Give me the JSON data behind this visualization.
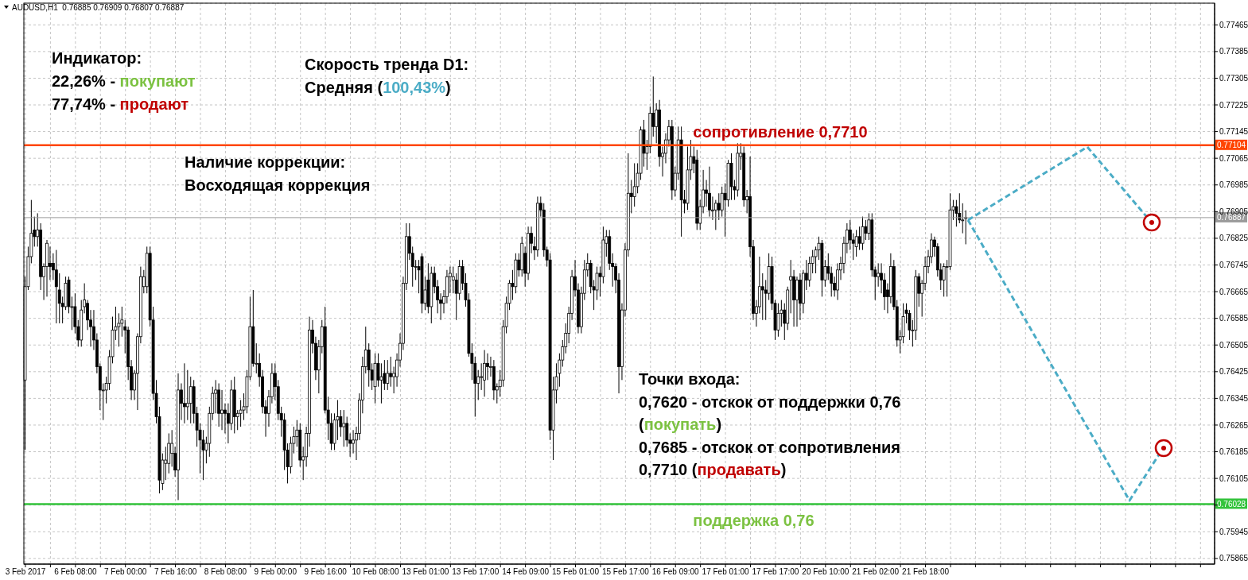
{
  "chart_data": {
    "type": "candlestick",
    "title": "AUDUSD,H1  0.76885 0.76909 0.76807 0.76887",
    "categories": [
      "3 Feb 2017",
      null,
      null,
      null,
      null,
      null,
      null,
      null,
      null,
      null,
      null,
      null,
      null,
      null,
      null,
      null,
      "6 Feb 08:00",
      null,
      null,
      null,
      null,
      null,
      null,
      null,
      null,
      null,
      null,
      null,
      null,
      null,
      null,
      null,
      "7 Feb 00:00",
      null,
      null,
      null,
      null,
      null,
      null,
      null,
      null,
      null,
      null,
      null,
      null,
      null,
      null,
      null,
      "7 Feb 16:00",
      null,
      null,
      null,
      null,
      null,
      null,
      null,
      null,
      null,
      null,
      null,
      null,
      null,
      null,
      null,
      "8 Feb 08:00",
      null,
      null,
      null,
      null,
      null,
      null,
      null,
      null,
      null,
      null,
      null,
      null,
      null,
      null,
      null,
      "9 Feb 00:00",
      null,
      null,
      null,
      null,
      null,
      null,
      null,
      null,
      null,
      null,
      null,
      null,
      null,
      null,
      null,
      "9 Feb 16:00",
      null,
      null,
      null,
      null,
      null,
      null,
      null,
      null,
      null,
      null,
      null,
      null,
      null,
      null,
      null,
      "10 Feb 08:00",
      null,
      null,
      null,
      null,
      null,
      null,
      null,
      null,
      null,
      null,
      null,
      null,
      null,
      null,
      null,
      "13 Feb 01:00",
      null,
      null,
      null,
      null,
      null,
      null,
      null,
      null,
      null,
      null,
      null,
      null,
      null,
      null,
      null,
      "13 Feb 17:00",
      null,
      null,
      null,
      null,
      null,
      null,
      null,
      null,
      null,
      null,
      null,
      null,
      null,
      null,
      null,
      "14 Feb 09:00",
      null,
      null,
      null,
      null,
      null,
      null,
      null,
      null,
      null,
      null,
      null,
      null,
      null,
      null,
      null,
      "15 Feb 01:00",
      null,
      null,
      null,
      null,
      null,
      null,
      null,
      null,
      null,
      null,
      null,
      null,
      null,
      null,
      null,
      "15 Feb 17:00",
      null,
      null,
      null,
      null,
      null,
      null,
      null,
      null,
      null,
      null,
      null,
      null,
      null,
      null,
      null,
      "16 Feb 09:00",
      null,
      null,
      null,
      null,
      null,
      null,
      null,
      null,
      null,
      null,
      null,
      null,
      null,
      null,
      null,
      "17 Feb 01:00",
      null,
      null,
      null,
      null,
      null,
      null,
      null,
      null,
      null,
      null,
      null,
      null,
      null,
      null,
      null,
      "17 Feb 17:00",
      null,
      null,
      null,
      null,
      null,
      null,
      null,
      null,
      null,
      null,
      null,
      null,
      null,
      null,
      null,
      "20 Feb 10:00",
      null,
      null,
      null,
      null,
      null,
      null,
      null,
      null,
      null,
      null,
      null,
      null,
      null,
      null,
      null,
      "21 Feb 02:00",
      null,
      null,
      null,
      null,
      null,
      null,
      null,
      null,
      null,
      null,
      null,
      null,
      null,
      null,
      null,
      "21 Feb 18:00",
      null,
      null,
      null,
      null,
      null,
      null,
      null,
      null,
      null,
      null,
      null,
      null,
      null,
      null,
      null,
      null,
      null,
      null,
      null,
      null,
      null,
      null,
      null,
      null,
      null,
      null,
      null,
      null,
      null,
      null,
      null,
      null,
      null,
      null,
      null,
      null,
      null,
      null,
      null,
      null,
      null,
      null,
      null,
      null,
      null,
      null,
      null,
      null,
      null,
      null,
      null,
      null,
      null,
      null,
      null,
      null,
      null,
      null,
      null,
      null,
      null,
      null,
      null,
      null,
      null,
      null,
      null,
      null,
      null,
      null,
      null,
      null,
      null,
      null,
      null,
      null,
      null,
      null,
      null,
      null,
      null,
      null,
      null,
      null,
      null,
      null,
      null,
      null,
      null,
      null,
      null,
      null
    ],
    "ohlc": [
      [
        0.764,
        0.7671,
        0.7619,
        0.7668
      ],
      [
        0.7668,
        0.768,
        0.7667,
        0.7677
      ],
      [
        0.7677,
        0.7694,
        0.7675,
        0.7684
      ],
      [
        0.7685,
        0.7689,
        0.768,
        0.7683
      ],
      [
        0.7683,
        0.769,
        0.768,
        0.7685
      ],
      [
        0.7685,
        0.7687,
        0.7667,
        0.7671
      ],
      [
        0.7671,
        0.7675,
        0.7664,
        0.7674
      ],
      [
        0.7674,
        0.7682,
        0.7665,
        0.7681
      ],
      [
        0.7675,
        0.768,
        0.767,
        0.7674
      ],
      [
        0.7675,
        0.7678,
        0.767,
        0.7673
      ],
      [
        0.7673,
        0.7679,
        0.7657,
        0.7668
      ],
      [
        0.7667,
        0.7672,
        0.7657,
        0.7663
      ],
      [
        0.7663,
        0.7665,
        0.7657,
        0.7662
      ],
      [
        0.7662,
        0.7671,
        0.7661,
        0.7669
      ],
      [
        0.767,
        0.7671,
        0.766,
        0.7662
      ],
      [
        0.7662,
        0.7665,
        0.7655,
        0.7662
      ],
      [
        0.7662,
        0.7666,
        0.7654,
        0.7656
      ],
      [
        0.7656,
        0.7658,
        0.765,
        0.7652
      ],
      [
        0.7652,
        0.7664,
        0.765,
        0.7661
      ],
      [
        0.7662,
        0.7669,
        0.766,
        0.7664
      ],
      [
        0.7663,
        0.7664,
        0.7655,
        0.7658
      ],
      [
        0.7658,
        0.7661,
        0.765,
        0.7656
      ],
      [
        0.7656,
        0.7661,
        0.7649,
        0.7652
      ],
      [
        0.7652,
        0.7654,
        0.7642,
        0.7644
      ],
      [
        0.7644,
        0.7645,
        0.7631,
        0.7637
      ],
      [
        0.7637,
        0.7639,
        0.7628,
        0.7637
      ],
      [
        0.7637,
        0.7641,
        0.7633,
        0.7639
      ],
      [
        0.7639,
        0.7649,
        0.7637,
        0.7647
      ],
      [
        0.7647,
        0.7659,
        0.7645,
        0.7655
      ],
      [
        0.7655,
        0.7662,
        0.7652,
        0.7656
      ],
      [
        0.7656,
        0.766,
        0.765,
        0.7657
      ],
      [
        0.7657,
        0.7662,
        0.7653,
        0.7658
      ],
      [
        0.7656,
        0.7658,
        0.7648,
        0.7655
      ],
      [
        0.7655,
        0.7656,
        0.764,
        0.7644
      ],
      [
        0.7644,
        0.7646,
        0.7634,
        0.7637
      ],
      [
        0.7637,
        0.7643,
        0.7634,
        0.7642
      ],
      [
        0.7642,
        0.7654,
        0.7631,
        0.7653
      ],
      [
        0.7653,
        0.7674,
        0.7651,
        0.7671
      ],
      [
        0.7668,
        0.7673,
        0.7666,
        0.7671
      ],
      [
        0.7668,
        0.768,
        0.7666,
        0.7678
      ],
      [
        0.7678,
        0.768,
        0.7656,
        0.7658
      ],
      [
        0.7658,
        0.7662,
        0.7634,
        0.7636
      ],
      [
        0.7636,
        0.764,
        0.7627,
        0.7629
      ],
      [
        0.7629,
        0.7632,
        0.7606,
        0.761
      ],
      [
        0.7609,
        0.7618,
        0.7607,
        0.7616
      ],
      [
        0.7615,
        0.762,
        0.761,
        0.7616
      ],
      [
        0.7615,
        0.7624,
        0.7612,
        0.7621
      ],
      [
        0.7618,
        0.7625,
        0.7614,
        0.7621
      ],
      [
        0.7618,
        0.762,
        0.7611,
        0.7613
      ],
      [
        0.7613,
        0.7642,
        0.7604,
        0.7637
      ],
      [
        0.7637,
        0.7639,
        0.7628,
        0.7633
      ],
      [
        0.7633,
        0.7645,
        0.7627,
        0.7632
      ],
      [
        0.7632,
        0.7643,
        0.7628,
        0.7633
      ],
      [
        0.7633,
        0.7641,
        0.7627,
        0.7638
      ],
      [
        0.7638,
        0.764,
        0.7627,
        0.763
      ],
      [
        0.763,
        0.7632,
        0.762,
        0.7625
      ],
      [
        0.7625,
        0.7627,
        0.7612,
        0.7622
      ],
      [
        0.7622,
        0.7625,
        0.761,
        0.7619
      ],
      [
        0.7619,
        0.7623,
        0.7615,
        0.7621
      ],
      [
        0.7621,
        0.7632,
        0.7617,
        0.763
      ],
      [
        0.763,
        0.7638,
        0.7628,
        0.7636
      ],
      [
        0.7636,
        0.764,
        0.763,
        0.7637
      ],
      [
        0.7637,
        0.7639,
        0.7626,
        0.763
      ],
      [
        0.763,
        0.7637,
        0.7625,
        0.7631
      ],
      [
        0.7631,
        0.7633,
        0.7624,
        0.763
      ],
      [
        0.763,
        0.7633,
        0.7621,
        0.7627
      ],
      [
        0.7627,
        0.764,
        0.7625,
        0.7637
      ],
      [
        0.7637,
        0.7641,
        0.7624,
        0.7629
      ],
      [
        0.7629,
        0.7631,
        0.7625,
        0.763
      ],
      [
        0.763,
        0.7634,
        0.7626,
        0.7631
      ],
      [
        0.7631,
        0.7636,
        0.7628,
        0.7632
      ],
      [
        0.7632,
        0.7643,
        0.763,
        0.7641
      ],
      [
        0.7641,
        0.7665,
        0.764,
        0.7656
      ],
      [
        0.7656,
        0.7667,
        0.7644,
        0.7645
      ],
      [
        0.7645,
        0.7651,
        0.7642,
        0.7645
      ],
      [
        0.7645,
        0.7648,
        0.7638,
        0.7641
      ],
      [
        0.7641,
        0.7643,
        0.763,
        0.7632
      ],
      [
        0.7632,
        0.7634,
        0.7623,
        0.763
      ],
      [
        0.763,
        0.7637,
        0.7626,
        0.7635
      ],
      [
        0.7635,
        0.7645,
        0.7633,
        0.7642
      ],
      [
        0.7642,
        0.7645,
        0.7634,
        0.7638
      ],
      [
        0.7638,
        0.764,
        0.7628,
        0.763
      ],
      [
        0.763,
        0.7632,
        0.7623,
        0.7628
      ],
      [
        0.7628,
        0.763,
        0.7613,
        0.7619
      ],
      [
        0.7619,
        0.7621,
        0.7609,
        0.7614
      ],
      [
        0.7614,
        0.7623,
        0.7612,
        0.7621
      ],
      [
        0.7621,
        0.7626,
        0.7618,
        0.7623
      ],
      [
        0.7623,
        0.7628,
        0.762,
        0.7625
      ],
      [
        0.7625,
        0.7627,
        0.7614,
        0.7616
      ],
      [
        0.7616,
        0.762,
        0.761,
        0.7617
      ],
      [
        0.7617,
        0.7626,
        0.7614,
        0.7624
      ],
      [
        0.7624,
        0.7659,
        0.762,
        0.7655
      ],
      [
        0.7655,
        0.7658,
        0.7648,
        0.7651
      ],
      [
        0.7651,
        0.7653,
        0.764,
        0.7643
      ],
      [
        0.7643,
        0.7652,
        0.7636,
        0.765
      ],
      [
        0.765,
        0.7658,
        0.7648,
        0.7656
      ],
      [
        0.7656,
        0.7662,
        0.763,
        0.7631
      ],
      [
        0.7631,
        0.7635,
        0.7622,
        0.7627
      ],
      [
        0.7627,
        0.763,
        0.7619,
        0.7621
      ],
      [
        0.7621,
        0.763,
        0.7619,
        0.7628
      ],
      [
        0.7628,
        0.7634,
        0.7622,
        0.7629
      ],
      [
        0.7629,
        0.7631,
        0.7623,
        0.7626
      ],
      [
        0.7626,
        0.7631,
        0.762,
        0.7627
      ],
      [
        0.7627,
        0.7629,
        0.762,
        0.7622
      ],
      [
        0.7622,
        0.7624,
        0.7617,
        0.7621
      ],
      [
        0.7621,
        0.7625,
        0.7618,
        0.7622
      ],
      [
        0.7622,
        0.7626,
        0.7616,
        0.7624
      ],
      [
        0.7624,
        0.7636,
        0.7622,
        0.7634
      ],
      [
        0.7634,
        0.7647,
        0.763,
        0.7644
      ],
      [
        0.7644,
        0.7656,
        0.7642,
        0.7649
      ],
      [
        0.7649,
        0.7651,
        0.7638,
        0.7643
      ],
      [
        0.7643,
        0.7645,
        0.7637,
        0.764
      ],
      [
        0.7638,
        0.7648,
        0.7633,
        0.7645
      ],
      [
        0.7645,
        0.7648,
        0.7638,
        0.764
      ],
      [
        0.764,
        0.7645,
        0.7633,
        0.7641
      ],
      [
        0.7642,
        0.7646,
        0.7637,
        0.7639
      ],
      [
        0.7639,
        0.7646,
        0.7637,
        0.7642
      ],
      [
        0.7642,
        0.7647,
        0.7638,
        0.7641
      ],
      [
        0.7641,
        0.7644,
        0.7636,
        0.7642
      ],
      [
        0.7641,
        0.7648,
        0.7638,
        0.7646
      ],
      [
        0.7646,
        0.7654,
        0.7644,
        0.7651
      ],
      [
        0.7651,
        0.7671,
        0.7649,
        0.7669
      ],
      [
        0.7669,
        0.7687,
        0.7667,
        0.7683
      ],
      [
        0.7683,
        0.7687,
        0.7676,
        0.7678
      ],
      [
        0.7678,
        0.768,
        0.7668,
        0.7674
      ],
      [
        0.7674,
        0.7676,
        0.767,
        0.7674
      ],
      [
        0.7674,
        0.7676,
        0.7666,
        0.7673
      ],
      [
        0.7677,
        0.7678,
        0.766,
        0.7663
      ],
      [
        0.7663,
        0.7671,
        0.7661,
        0.7667
      ],
      [
        0.767,
        0.7675,
        0.766,
        0.7662
      ],
      [
        0.7662,
        0.7674,
        0.7657,
        0.7672
      ],
      [
        0.7672,
        0.7674,
        0.7666,
        0.7668
      ],
      [
        0.7668,
        0.767,
        0.766,
        0.7664
      ],
      [
        0.7664,
        0.7666,
        0.7658,
        0.7663
      ],
      [
        0.7663,
        0.7667,
        0.766,
        0.7665
      ],
      [
        0.7665,
        0.7673,
        0.7663,
        0.7671
      ],
      [
        0.7671,
        0.7674,
        0.7666,
        0.7672
      ],
      [
        0.767,
        0.7674,
        0.7666,
        0.7671
      ],
      [
        0.767,
        0.7672,
        0.7658,
        0.7666
      ],
      [
        0.7666,
        0.7676,
        0.7664,
        0.7674
      ],
      [
        0.7674,
        0.7676,
        0.7667,
        0.7669
      ],
      [
        0.7669,
        0.7672,
        0.7662,
        0.7664
      ],
      [
        0.7664,
        0.7666,
        0.7647,
        0.7648
      ],
      [
        0.7648,
        0.7651,
        0.764,
        0.7645
      ],
      [
        0.7645,
        0.7647,
        0.7629,
        0.7639
      ],
      [
        0.7639,
        0.7643,
        0.7634,
        0.7641
      ],
      [
        0.7641,
        0.7645,
        0.7637,
        0.7641
      ],
      [
        0.764,
        0.7649,
        0.7635,
        0.7645
      ],
      [
        0.7645,
        0.7648,
        0.764,
        0.7644
      ],
      [
        0.7644,
        0.7647,
        0.7641,
        0.7644
      ],
      [
        0.7644,
        0.7646,
        0.7634,
        0.7637
      ],
      [
        0.7637,
        0.7639,
        0.7633,
        0.7638
      ],
      [
        0.7638,
        0.7643,
        0.7635,
        0.764
      ],
      [
        0.764,
        0.7658,
        0.7638,
        0.7656
      ],
      [
        0.7656,
        0.7665,
        0.7654,
        0.7663
      ],
      [
        0.7663,
        0.767,
        0.7661,
        0.7669
      ],
      [
        0.7669,
        0.7673,
        0.7664,
        0.7668
      ],
      [
        0.7668,
        0.7678,
        0.7666,
        0.7676
      ],
      [
        0.7676,
        0.7678,
        0.7671,
        0.7673
      ],
      [
        0.7673,
        0.7683,
        0.7671,
        0.7681
      ],
      [
        0.7678,
        0.768,
        0.7668,
        0.7672
      ],
      [
        0.7672,
        0.7686,
        0.767,
        0.7684
      ],
      [
        0.7684,
        0.7686,
        0.7678,
        0.7681
      ],
      [
        0.768,
        0.7683,
        0.7676,
        0.7679
      ],
      [
        0.7679,
        0.7695,
        0.7677,
        0.7693
      ],
      [
        0.7693,
        0.7695,
        0.7689,
        0.7691
      ],
      [
        0.7691,
        0.7693,
        0.7677,
        0.7679
      ],
      [
        0.7679,
        0.768,
        0.7674,
        0.7676
      ],
      [
        0.7676,
        0.7678,
        0.7622,
        0.7625
      ],
      [
        0.7625,
        0.7641,
        0.7616,
        0.7637
      ],
      [
        0.7637,
        0.7645,
        0.7633,
        0.7641
      ],
      [
        0.7642,
        0.7648,
        0.7638,
        0.7646
      ],
      [
        0.7646,
        0.7652,
        0.7644,
        0.765
      ],
      [
        0.765,
        0.7657,
        0.7648,
        0.7654
      ],
      [
        0.7654,
        0.7662,
        0.7651,
        0.766
      ],
      [
        0.766,
        0.7673,
        0.7658,
        0.7671
      ],
      [
        0.7671,
        0.7676,
        0.7665,
        0.7667
      ],
      [
        0.7667,
        0.7669,
        0.7654,
        0.7656
      ],
      [
        0.7656,
        0.7668,
        0.7654,
        0.7666
      ],
      [
        0.7666,
        0.7676,
        0.7664,
        0.7673
      ],
      [
        0.7673,
        0.7678,
        0.7671,
        0.7675
      ],
      [
        0.7675,
        0.7676,
        0.7666,
        0.7668
      ],
      [
        0.7668,
        0.767,
        0.7661,
        0.7667
      ],
      [
        0.7667,
        0.7674,
        0.7664,
        0.7672
      ],
      [
        0.7672,
        0.7674,
        0.7665,
        0.7671
      ],
      [
        0.7671,
        0.7686,
        0.7669,
        0.7682
      ],
      [
        0.7681,
        0.7685,
        0.7677,
        0.7683
      ],
      [
        0.7683,
        0.7685,
        0.7673,
        0.7675
      ],
      [
        0.7675,
        0.7678,
        0.7668,
        0.7674
      ],
      [
        0.7674,
        0.7675,
        0.7666,
        0.767
      ],
      [
        0.767,
        0.7672,
        0.7636,
        0.7644
      ],
      [
        0.7644,
        0.7663,
        0.764,
        0.7661
      ],
      [
        0.7661,
        0.7681,
        0.7659,
        0.7679
      ],
      [
        0.7679,
        0.7708,
        0.7677,
        0.7696
      ],
      [
        0.7696,
        0.77,
        0.769,
        0.7695
      ],
      [
        0.7695,
        0.7705,
        0.7692,
        0.7698
      ],
      [
        0.7698,
        0.7705,
        0.7696,
        0.7702
      ],
      [
        0.7702,
        0.7716,
        0.77,
        0.7715
      ],
      [
        0.7715,
        0.7718,
        0.7704,
        0.7708
      ],
      [
        0.7708,
        0.7712,
        0.7703,
        0.771
      ],
      [
        0.771,
        0.7722,
        0.7708,
        0.772
      ],
      [
        0.772,
        0.7731,
        0.7713,
        0.7716
      ],
      [
        0.7716,
        0.7723,
        0.7711,
        0.7721
      ],
      [
        0.7721,
        0.7724,
        0.7704,
        0.7707
      ],
      [
        0.7707,
        0.771,
        0.7701,
        0.7708
      ],
      [
        0.7708,
        0.7714,
        0.7705,
        0.7712
      ],
      [
        0.7712,
        0.7718,
        0.771,
        0.7716
      ],
      [
        0.7716,
        0.7718,
        0.7694,
        0.7697
      ],
      [
        0.7697,
        0.7704,
        0.7695,
        0.7702
      ],
      [
        0.7702,
        0.7716,
        0.77,
        0.7712
      ],
      [
        0.7712,
        0.7716,
        0.7683,
        0.7694
      ],
      [
        0.7694,
        0.7697,
        0.769,
        0.7693
      ],
      [
        0.7693,
        0.771,
        0.7691,
        0.7703
      ],
      [
        0.7703,
        0.7712,
        0.77,
        0.7707
      ],
      [
        0.7707,
        0.771,
        0.7702,
        0.7705
      ],
      [
        0.7706,
        0.7709,
        0.7685,
        0.7687
      ],
      [
        0.7687,
        0.7694,
        0.7685,
        0.7692
      ],
      [
        0.7692,
        0.7703,
        0.769,
        0.7697
      ],
      [
        0.7697,
        0.77,
        0.7692,
        0.7696
      ],
      [
        0.7696,
        0.7704,
        0.7689,
        0.7691
      ],
      [
        0.7691,
        0.7695,
        0.7688,
        0.7691
      ],
      [
        0.7691,
        0.7694,
        0.7685,
        0.7693
      ],
      [
        0.7693,
        0.7696,
        0.7688,
        0.7691
      ],
      [
        0.7691,
        0.7698,
        0.7689,
        0.7696
      ],
      [
        0.7696,
        0.7699,
        0.7683,
        0.7694
      ],
      [
        0.7694,
        0.7706,
        0.7692,
        0.7705
      ],
      [
        0.7705,
        0.7708,
        0.7694,
        0.7698
      ],
      [
        0.7698,
        0.77,
        0.7694,
        0.7697
      ],
      [
        0.7697,
        0.7711,
        0.7695,
        0.7708
      ],
      [
        0.7707,
        0.7711,
        0.7703,
        0.7708
      ],
      [
        0.7708,
        0.771,
        0.7692,
        0.7694
      ],
      [
        0.7694,
        0.7697,
        0.769,
        0.7695
      ],
      [
        0.7695,
        0.7707,
        0.7677,
        0.768
      ],
      [
        0.768,
        0.7682,
        0.7658,
        0.766
      ],
      [
        0.766,
        0.7664,
        0.7656,
        0.7662
      ],
      [
        0.7662,
        0.7677,
        0.766,
        0.7668
      ],
      [
        0.7668,
        0.7672,
        0.7658,
        0.7667
      ],
      [
        0.7667,
        0.767,
        0.7658,
        0.7666
      ],
      [
        0.7666,
        0.7678,
        0.7664,
        0.7674
      ],
      [
        0.7674,
        0.7677,
        0.7661,
        0.7663
      ],
      [
        0.7663,
        0.7664,
        0.7652,
        0.7655
      ],
      [
        0.7655,
        0.7663,
        0.7653,
        0.766
      ],
      [
        0.766,
        0.7664,
        0.7656,
        0.7661
      ],
      [
        0.7661,
        0.7663,
        0.7652,
        0.7657
      ],
      [
        0.7657,
        0.7668,
        0.7655,
        0.7667
      ],
      [
        0.767,
        0.7676,
        0.766,
        0.7671
      ],
      [
        0.7671,
        0.7673,
        0.7656,
        0.7664
      ],
      [
        0.7664,
        0.7671,
        0.7656,
        0.767
      ],
      [
        0.767,
        0.7672,
        0.7658,
        0.7663
      ],
      [
        0.7663,
        0.7673,
        0.766,
        0.7672
      ],
      [
        0.7672,
        0.7676,
        0.7667,
        0.767
      ],
      [
        0.767,
        0.7677,
        0.7668,
        0.7675
      ],
      [
        0.7675,
        0.7679,
        0.7672,
        0.7677
      ],
      [
        0.7677,
        0.768,
        0.7672,
        0.7679
      ],
      [
        0.7679,
        0.7683,
        0.7676,
        0.7681
      ],
      [
        0.7681,
        0.7682,
        0.7665,
        0.767
      ],
      [
        0.767,
        0.7676,
        0.7668,
        0.7674
      ],
      [
        0.7674,
        0.7678,
        0.767,
        0.7672
      ],
      [
        0.7672,
        0.7674,
        0.7665,
        0.7669
      ],
      [
        0.7669,
        0.7671,
        0.7665,
        0.7667
      ],
      [
        0.7667,
        0.7675,
        0.7664,
        0.7673
      ],
      [
        0.7673,
        0.7677,
        0.767,
        0.7675
      ],
      [
        0.7675,
        0.7683,
        0.7672,
        0.7681
      ],
      [
        0.7681,
        0.7687,
        0.7678,
        0.7685
      ],
      [
        0.7685,
        0.7688,
        0.7679,
        0.7682
      ],
      [
        0.7682,
        0.7684,
        0.7676,
        0.7681
      ],
      [
        0.768,
        0.7685,
        0.7677,
        0.7683
      ],
      [
        0.7683,
        0.7686,
        0.7679,
        0.7681
      ],
      [
        0.7681,
        0.7689,
        0.7679,
        0.7686
      ],
      [
        0.7686,
        0.7688,
        0.7682,
        0.7684
      ],
      [
        0.7684,
        0.769,
        0.7682,
        0.7688
      ],
      [
        0.7688,
        0.769,
        0.7671,
        0.7673
      ],
      [
        0.7673,
        0.7674,
        0.7664,
        0.7671
      ],
      [
        0.7671,
        0.7675,
        0.7668,
        0.7672
      ],
      [
        0.7672,
        0.7675,
        0.7666,
        0.767
      ],
      [
        0.767,
        0.7672,
        0.7661,
        0.7665
      ],
      [
        0.7667,
        0.7669,
        0.766,
        0.7665
      ],
      [
        0.7665,
        0.7678,
        0.7663,
        0.7674
      ],
      [
        0.7674,
        0.7676,
        0.7661,
        0.7662
      ],
      [
        0.7662,
        0.7664,
        0.765,
        0.7652
      ],
      [
        0.7652,
        0.7655,
        0.7648,
        0.7653
      ],
      [
        0.7653,
        0.7663,
        0.7651,
        0.7659
      ],
      [
        0.7661,
        0.7663,
        0.7657,
        0.766
      ],
      [
        0.766,
        0.7661,
        0.7652,
        0.7655
      ],
      [
        0.7655,
        0.7658,
        0.765,
        0.7655
      ],
      [
        0.7655,
        0.7673,
        0.7652,
        0.7671
      ],
      [
        0.7671,
        0.7672,
        0.7662,
        0.7666
      ],
      [
        0.7666,
        0.767,
        0.7659,
        0.7669
      ],
      [
        0.7669,
        0.7677,
        0.7667,
        0.7674
      ],
      [
        0.7674,
        0.7679,
        0.7672,
        0.7677
      ],
      [
        0.7677,
        0.7684,
        0.7675,
        0.7682
      ],
      [
        0.7682,
        0.7683,
        0.7677,
        0.768
      ],
      [
        0.768,
        0.7681,
        0.7671,
        0.7673
      ],
      [
        0.7673,
        0.7675,
        0.7667,
        0.767
      ],
      [
        0.767,
        0.7675,
        0.7665,
        0.7674
      ],
      [
        0.7674,
        0.7676,
        0.7665,
        0.7674
      ],
      [
        0.7674,
        0.7696,
        0.7673,
        0.7691
      ],
      [
        0.7691,
        0.7694,
        0.7688,
        0.7692
      ],
      [
        0.7692,
        0.7694,
        0.7686,
        0.769
      ],
      [
        0.769,
        0.7696,
        0.7687,
        0.7688
      ],
      [
        0.7688,
        0.7693,
        0.7684,
        0.7688
      ],
      [
        0.76885,
        0.76909,
        0.76807,
        0.76887
      ],
      null,
      null,
      null,
      null,
      null,
      null,
      null,
      null,
      null,
      null,
      null,
      null,
      null,
      null,
      null,
      null,
      null,
      null,
      null,
      null,
      null,
      null,
      null,
      null,
      null,
      null,
      null,
      null,
      null,
      null,
      null,
      null,
      null,
      null,
      null,
      null,
      null,
      null,
      null,
      null,
      null,
      null,
      null,
      null,
      null,
      null,
      null,
      null,
      null,
      null,
      null,
      null,
      null,
      null,
      null,
      null,
      null,
      null,
      null,
      null,
      null,
      null,
      null,
      null,
      null,
      null,
      null,
      null,
      null,
      null,
      null,
      null,
      null,
      null,
      null,
      null,
      null,
      null,
      null
    ],
    "color": "#000000",
    "ylim": [
      0.75848,
      0.7753
    ],
    "yticks": [
      0.77465,
      0.77385,
      0.77305,
      0.77225,
      0.77145,
      0.77065,
      0.76985,
      0.76905,
      0.76825,
      0.76745,
      0.76665,
      0.76585,
      0.76505,
      0.76425,
      0.76345,
      0.76265,
      0.76185,
      0.76105,
      {
        "value": 0.76025,
        "label": null
      },
      0.75945,
      0.75865
    ],
    "grid": true,
    "ref_lines": [
      {
        "axis": "y",
        "value": 0.77104,
        "label": "0.77104",
        "color": "#ff4500"
      },
      {
        "axis": "y",
        "value": 0.76887,
        "label": "0.76887",
        "color": "#9a9a9a"
      },
      {
        "axis": "y",
        "value": 0.76028,
        "label": "0.76028",
        "color": "#33c33b"
      }
    ],
    "annotations": [
      "Индикатор:",
      "22,26% - ",
      "покупают",
      "77,74% - ",
      "продают",
      "Скорость тренда D1:",
      "Средняя (",
      "100,43%",
      ")",
      "Наличие коррекции:",
      "Восходящая коррекция",
      "Точки входа:",
      "0,7620 - отскок от поддержки 0,76",
      "(",
      "покупать",
      ")",
      "0,7685 - отскок от сопротивления",
      "0,7710 (",
      "продавать",
      ")",
      {
        "text": "сопротивление 0,7710",
        "y": 0.77104
      },
      {
        "text": "поддержка 0,76",
        "y": 0.76028
      }
    ]
  }
}
